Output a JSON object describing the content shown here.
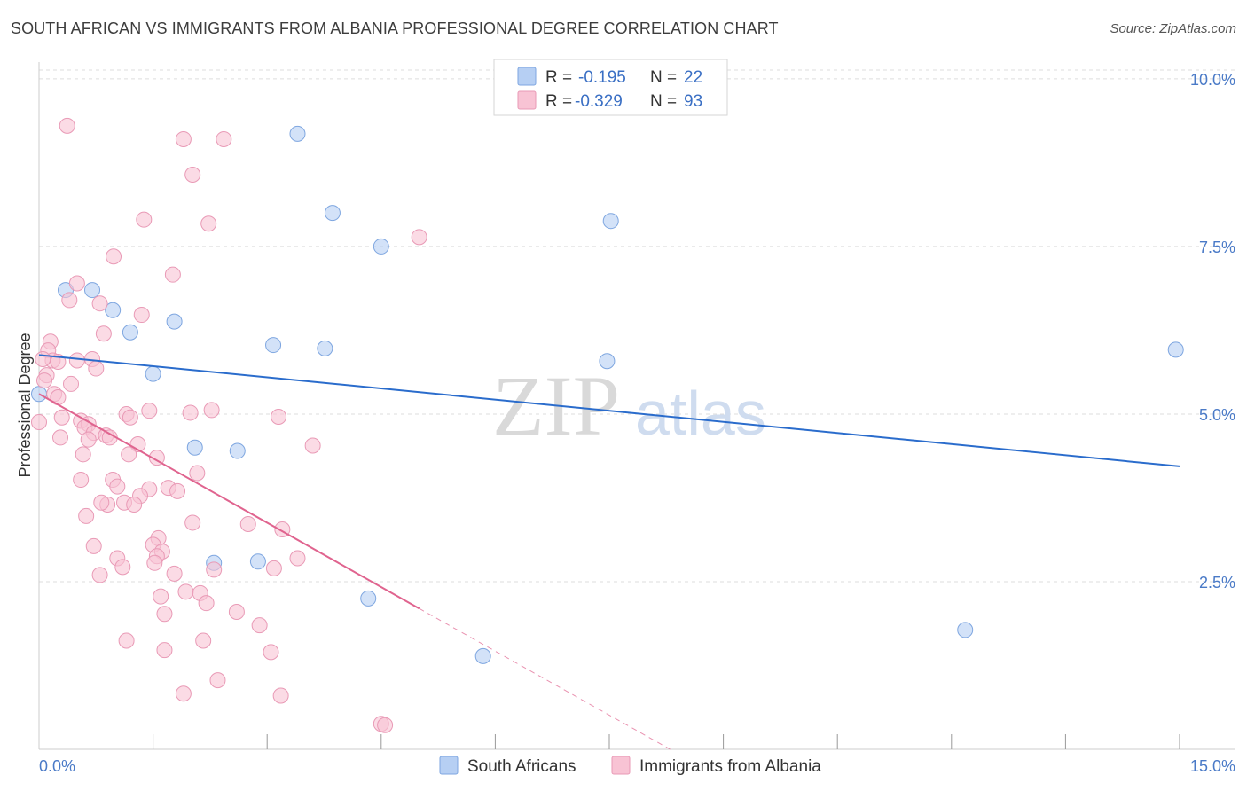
{
  "title": "SOUTH AFRICAN VS IMMIGRANTS FROM ALBANIA PROFESSIONAL DEGREE CORRELATION CHART",
  "source": "Source: ZipAtlas.com",
  "watermark": {
    "zip": "ZIP",
    "atlas": "atlas"
  },
  "colors": {
    "blue_fill": "#b6cff3",
    "blue_stroke": "#7ea6e0",
    "blue_line": "#2a6ccc",
    "pink_fill": "#f8c3d4",
    "pink_stroke": "#e99ab6",
    "pink_line": "#e0648f",
    "grid": "#dddddd",
    "tick_text": "#4a7ac7"
  },
  "legend": {
    "rows": [
      {
        "r_label": "R =",
        "r_value": "-0.195",
        "n_label": "N =",
        "n_value": "22"
      },
      {
        "r_label": "R =",
        "r_value": "-0.329",
        "n_label": "N =",
        "n_value": "93"
      }
    ],
    "bottom": [
      "South Africans",
      "Immigrants from Albania"
    ]
  },
  "chart_data": {
    "type": "scatter",
    "title": "SOUTH AFRICAN VS IMMIGRANTS FROM ALBANIA PROFESSIONAL DEGREE CORRELATION CHART",
    "xlabel": "",
    "ylabel": "Professional Degree",
    "xlim": [
      0,
      15
    ],
    "ylim": [
      0,
      10.25
    ],
    "x_tick_labels": [
      {
        "value": 0,
        "label": "0.0%"
      },
      {
        "value": 15,
        "label": "15.0%"
      }
    ],
    "y_tick_labels": [
      {
        "value": 2.5,
        "label": "2.5%"
      },
      {
        "value": 5.0,
        "label": "5.0%"
      },
      {
        "value": 7.5,
        "label": "7.5%"
      },
      {
        "value": 10.0,
        "label": "10.0%"
      }
    ],
    "x_minor_ticks": [
      1.5,
      3,
      4.5,
      6,
      7.5,
      9,
      10.5,
      12,
      13.5
    ],
    "series": [
      {
        "name": "South Africans",
        "r": -0.195,
        "n": 22,
        "trend": {
          "x0": 0,
          "y0": 5.88,
          "x1": 15,
          "y1": 4.22
        },
        "points": [
          [
            0.0,
            5.3
          ],
          [
            0.7,
            6.85
          ],
          [
            0.35,
            6.85
          ],
          [
            0.97,
            6.55
          ],
          [
            1.2,
            6.22
          ],
          [
            1.78,
            6.38
          ],
          [
            1.5,
            5.6
          ],
          [
            3.4,
            9.18
          ],
          [
            3.86,
            8.0
          ],
          [
            4.5,
            7.5
          ],
          [
            7.52,
            7.88
          ],
          [
            3.08,
            6.03
          ],
          [
            3.76,
            5.98
          ],
          [
            7.47,
            5.79
          ],
          [
            14.95,
            5.96
          ],
          [
            2.05,
            4.5
          ],
          [
            2.61,
            4.45
          ],
          [
            2.3,
            2.78
          ],
          [
            2.88,
            2.8
          ],
          [
            4.33,
            2.25
          ],
          [
            5.84,
            1.39
          ],
          [
            12.18,
            1.78
          ]
        ]
      },
      {
        "name": "Immigrants from Albania",
        "r": -0.329,
        "n": 93,
        "trend": {
          "x0": 0,
          "y0": 5.3,
          "x1": 5.0,
          "y1": 2.1
        },
        "trend_dashed": {
          "x0": 5.0,
          "y0": 2.1,
          "x1": 8.3,
          "y1": 0.0
        },
        "points": [
          [
            0.37,
            9.3
          ],
          [
            1.9,
            9.1
          ],
          [
            2.43,
            9.1
          ],
          [
            2.02,
            8.57
          ],
          [
            1.38,
            7.9
          ],
          [
            2.23,
            7.84
          ],
          [
            5.0,
            7.64
          ],
          [
            0.98,
            7.35
          ],
          [
            1.76,
            7.08
          ],
          [
            0.5,
            6.95
          ],
          [
            0.4,
            6.7
          ],
          [
            0.8,
            6.65
          ],
          [
            1.35,
            6.48
          ],
          [
            0.85,
            6.2
          ],
          [
            0.15,
            6.08
          ],
          [
            0.12,
            5.95
          ],
          [
            0.18,
            5.8
          ],
          [
            0.25,
            5.78
          ],
          [
            0.05,
            5.82
          ],
          [
            0.5,
            5.8
          ],
          [
            0.7,
            5.82
          ],
          [
            0.1,
            5.58
          ],
          [
            0.07,
            5.5
          ],
          [
            0.75,
            5.68
          ],
          [
            0.42,
            5.45
          ],
          [
            0.2,
            5.3
          ],
          [
            0.25,
            5.25
          ],
          [
            0.3,
            4.95
          ],
          [
            0.55,
            4.9
          ],
          [
            0.65,
            4.85
          ],
          [
            1.15,
            5.0
          ],
          [
            1.2,
            4.95
          ],
          [
            1.45,
            5.05
          ],
          [
            1.99,
            5.02
          ],
          [
            2.27,
            5.06
          ],
          [
            3.15,
            4.96
          ],
          [
            0.0,
            4.88
          ],
          [
            0.6,
            4.8
          ],
          [
            0.72,
            4.72
          ],
          [
            0.88,
            4.68
          ],
          [
            0.28,
            4.65
          ],
          [
            0.65,
            4.62
          ],
          [
            0.93,
            4.65
          ],
          [
            1.3,
            4.55
          ],
          [
            3.6,
            4.53
          ],
          [
            0.58,
            4.4
          ],
          [
            1.18,
            4.4
          ],
          [
            1.55,
            4.35
          ],
          [
            2.08,
            4.12
          ],
          [
            0.55,
            4.02
          ],
          [
            0.97,
            4.02
          ],
          [
            1.03,
            3.92
          ],
          [
            1.45,
            3.88
          ],
          [
            1.7,
            3.9
          ],
          [
            1.82,
            3.85
          ],
          [
            1.33,
            3.78
          ],
          [
            1.12,
            3.68
          ],
          [
            0.9,
            3.65
          ],
          [
            0.82,
            3.68
          ],
          [
            1.25,
            3.65
          ],
          [
            0.62,
            3.48
          ],
          [
            2.02,
            3.38
          ],
          [
            2.75,
            3.36
          ],
          [
            3.2,
            3.28
          ],
          [
            1.57,
            3.15
          ],
          [
            0.72,
            3.03
          ],
          [
            1.5,
            3.05
          ],
          [
            1.62,
            2.95
          ],
          [
            1.03,
            2.85
          ],
          [
            1.55,
            2.88
          ],
          [
            1.52,
            2.78
          ],
          [
            3.4,
            2.85
          ],
          [
            1.1,
            2.72
          ],
          [
            3.09,
            2.7
          ],
          [
            0.8,
            2.6
          ],
          [
            1.78,
            2.62
          ],
          [
            2.3,
            2.68
          ],
          [
            1.93,
            2.35
          ],
          [
            2.12,
            2.33
          ],
          [
            1.6,
            2.28
          ],
          [
            2.2,
            2.18
          ],
          [
            2.6,
            2.05
          ],
          [
            1.65,
            2.02
          ],
          [
            2.9,
            1.85
          ],
          [
            1.15,
            1.62
          ],
          [
            2.16,
            1.62
          ],
          [
            1.65,
            1.48
          ],
          [
            3.05,
            1.45
          ],
          [
            2.35,
            1.03
          ],
          [
            1.9,
            0.83
          ],
          [
            3.18,
            0.8
          ],
          [
            4.5,
            0.38
          ],
          [
            4.55,
            0.36
          ]
        ]
      }
    ]
  }
}
